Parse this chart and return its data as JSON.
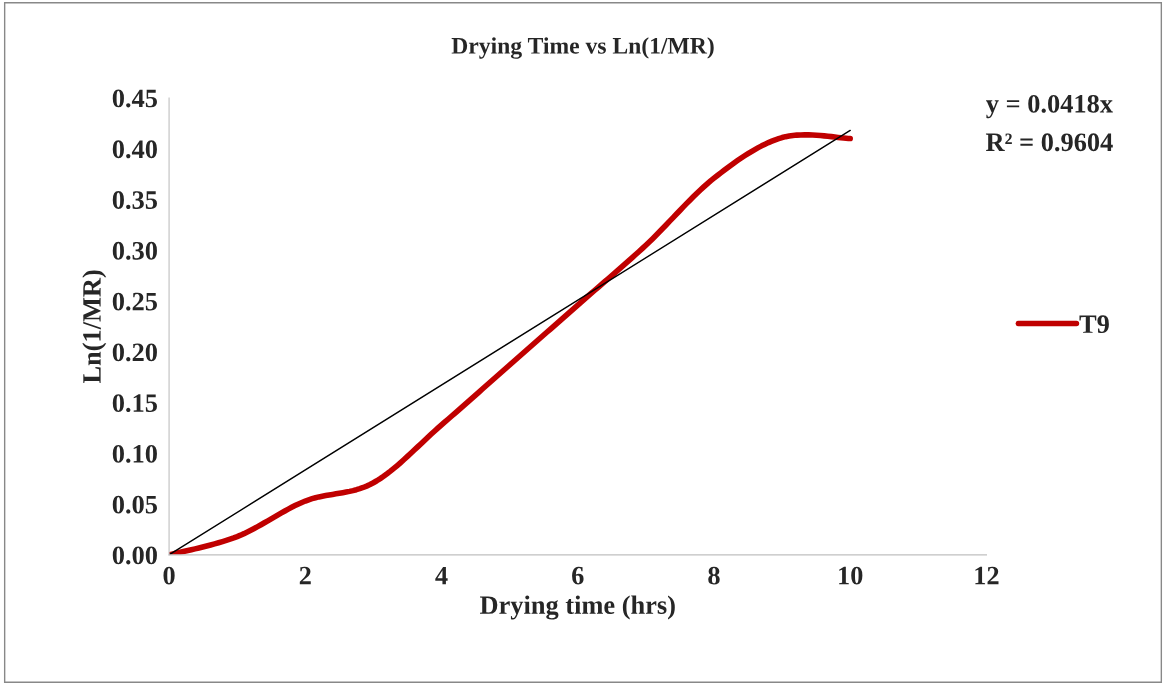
{
  "chart_data": {
    "type": "line",
    "title": "Drying Time vs Ln(1/MR)",
    "xlabel": "Drying time (hrs)",
    "ylabel": "Ln(1/MR)",
    "xlim": [
      0,
      12
    ],
    "xticks": [
      0,
      2,
      4,
      6,
      8,
      10,
      12
    ],
    "ylim": [
      0,
      0.45
    ],
    "yticks": [
      {
        "value": 0,
        "label": "0.00"
      },
      {
        "value": 0.05,
        "label": "0.05"
      },
      {
        "value": 0.1,
        "label": "0.10"
      },
      {
        "value": 0.15,
        "label": "0.15"
      },
      {
        "value": 0.2,
        "label": "0.20"
      },
      {
        "value": 0.25,
        "label": "0.25"
      },
      {
        "value": 0.3,
        "label": "0.30"
      },
      {
        "value": 0.35,
        "label": "0.35"
      },
      {
        "value": 0.4,
        "label": "0.40"
      },
      {
        "value": 0.45,
        "label": "0.45"
      }
    ],
    "x": [
      0,
      1,
      2,
      3,
      4,
      5,
      6,
      7,
      8,
      9,
      10
    ],
    "series": [
      {
        "name": "T9",
        "color": "#c00000",
        "values": [
          0,
          0.018,
          0.053,
          0.071,
          0.128,
          0.187,
          0.246,
          0.305,
          0.371,
          0.411,
          0.41
        ]
      },
      {
        "type": "line",
        "color": "#000000",
        "x": [
          0,
          10
        ],
        "values": [
          0,
          0.418
        ]
      }
    ],
    "annotations": [
      "y = 0.0418x",
      "R² = 0.9604"
    ],
    "grid": false,
    "legend": "right",
    "marker": "none",
    "line_style": "solid"
  }
}
